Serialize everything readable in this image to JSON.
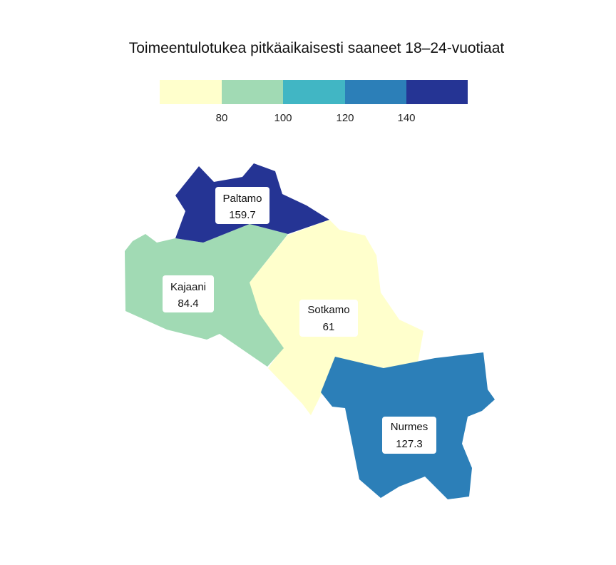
{
  "title": "Toimeentulotukea pitkäaikaisesti saaneet 18–24-vuotiaat",
  "legend": {
    "colors": [
      "#ffffcc",
      "#a1dab4",
      "#41b6c4",
      "#2c7fb8",
      "#253494"
    ],
    "ticks": [
      "80",
      "100",
      "120",
      "140"
    ],
    "breaks": [
      80,
      100,
      120,
      140
    ]
  },
  "regions": [
    {
      "name": "Paltamo",
      "value": "159.7",
      "color": "#253494"
    },
    {
      "name": "Kajaani",
      "value": "84.4",
      "color": "#a1dab4"
    },
    {
      "name": "Sotkamo",
      "value": "61",
      "color": "#ffffcc"
    },
    {
      "name": "Nurmes",
      "value": "127.3",
      "color": "#2c7fb8"
    }
  ]
}
